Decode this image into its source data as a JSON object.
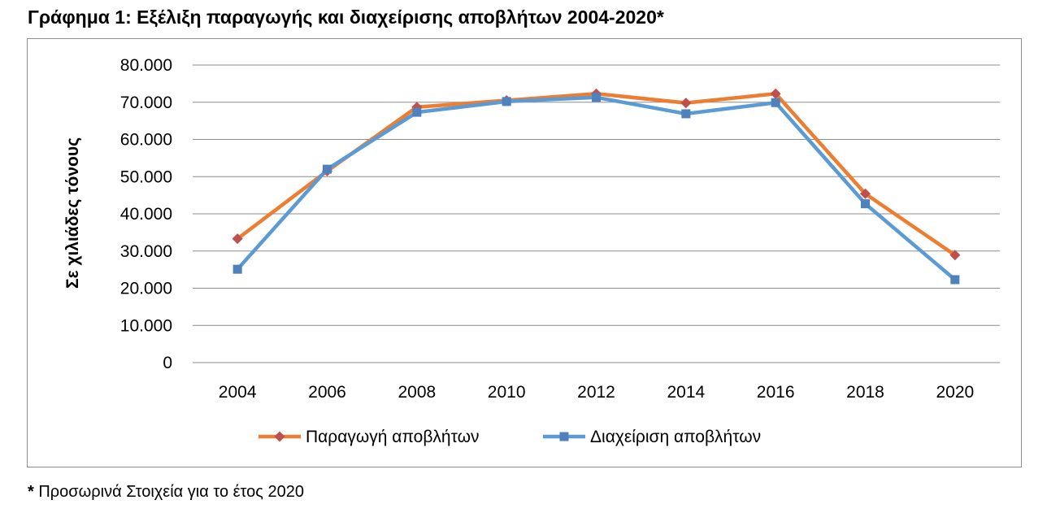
{
  "title": "Γράφημα 1: Εξέλιξη παραγωγής και διαχείρισης αποβλήτων 2004-2020*",
  "footnote": {
    "marker": "*",
    "text": " Προσωρινά Στοιχεία για το έτος 2020"
  },
  "chart_data": {
    "type": "line",
    "title": "Γράφημα 1: Εξέλιξη παραγωγής και διαχείρισης αποβλήτων 2004-2020*",
    "xlabel": "",
    "ylabel": "Σε χιλιάδες τόνους",
    "categories": [
      "2004",
      "2006",
      "2008",
      "2010",
      "2012",
      "2014",
      "2016",
      "2018",
      "2020"
    ],
    "ylim": [
      0,
      80000
    ],
    "yticks": [
      0,
      10000,
      20000,
      30000,
      40000,
      50000,
      60000,
      70000,
      80000
    ],
    "ytick_labels": [
      "0",
      "10.000",
      "20.000",
      "30.000",
      "40.000",
      "50.000",
      "60.000",
      "70.000",
      "80.000"
    ],
    "grid": true,
    "legend": "bottom",
    "series": [
      {
        "name": "Παραγωγή αποβλήτων",
        "color": "#ed7d31",
        "marker": "diamond",
        "values": [
          33300,
          51500,
          68700,
          70500,
          72300,
          69800,
          72300,
          45400,
          28900
        ]
      },
      {
        "name": "Διαχείριση αποβλήτων",
        "color": "#5b9bd5",
        "marker": "square",
        "values": [
          25100,
          52000,
          67300,
          70200,
          71300,
          66900,
          69900,
          42700,
          22300
        ]
      }
    ]
  }
}
